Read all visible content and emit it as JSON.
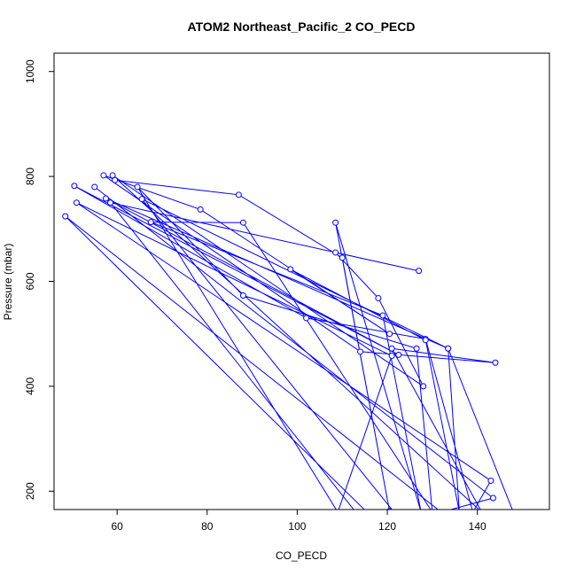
{
  "chart_data": {
    "type": "line",
    "title": "ATOM2 Northeast_Pacific_2 CO_PECD",
    "xlabel": "CO_PECD",
    "ylabel": "Pressure (mbar)",
    "xlim": [
      46,
      156
    ],
    "ylim": [
      1035,
      165
    ],
    "y_reversed": true,
    "x_ticks": [
      60,
      80,
      100,
      120,
      140
    ],
    "y_ticks": [
      200,
      400,
      600,
      800,
      1000
    ],
    "grid": false,
    "series_color": "#0000ff",
    "series": [
      {
        "x": [
          59.5,
          87.0,
          110.0,
          120.5,
          108.5,
          127.5,
          119.0,
          67.5,
          88.0,
          130.0,
          126.5,
          88.0,
          64.5,
          109.0,
          121.0,
          51.0,
          143.0,
          139.0,
          128.5,
          102.0,
          50.5,
          122.5,
          57.5,
          133.5,
          136.0,
          128.5,
          98.5,
          120.5,
          78.5,
          57.0,
          114.0,
          144.0,
          121.0,
          141.0,
          59.0,
          128.0,
          118.0,
          108.5,
          127.0,
          58.5,
          113.0,
          148.0,
          133.5,
          65.5,
          121.5,
          115.5,
          48.5,
          132.0,
          143.5,
          55.0
        ],
        "y": [
          793,
          765,
          645,
          162,
          712,
          160,
          535,
          713,
          712,
          160,
          472,
          573,
          780,
          160,
          458,
          750,
          220,
          160,
          490,
          530,
          782,
          460,
          758,
          472,
          160,
          488,
          623,
          500,
          737,
          802,
          466,
          445,
          472,
          160,
          802,
          400,
          568,
          655,
          620,
          750,
          160,
          160,
          472,
          757,
          160,
          160,
          724,
          160,
          187,
          780
        ]
      }
    ]
  }
}
